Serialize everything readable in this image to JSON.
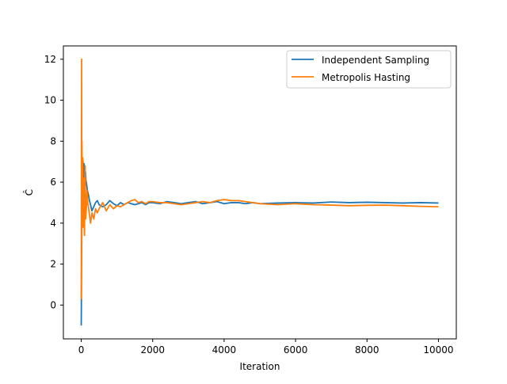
{
  "chart_data": {
    "type": "line",
    "title": "",
    "xlabel": "Iteration",
    "ylabel": "Ĉ",
    "xlim": [
      -500,
      10500
    ],
    "ylim": [
      -1.65,
      12.65
    ],
    "xticks": [
      0,
      2000,
      4000,
      6000,
      8000,
      10000
    ],
    "yticks": [
      0,
      2,
      4,
      6,
      8,
      10,
      12
    ],
    "grid": false,
    "legend_position": "top-right",
    "series": [
      {
        "name": "Independent Sampling",
        "color": "#1f77b4",
        "x": [
          0,
          5,
          10,
          15,
          20,
          30,
          40,
          50,
          60,
          70,
          80,
          90,
          100,
          110,
          120,
          130,
          150,
          170,
          200,
          230,
          260,
          300,
          350,
          400,
          450,
          500,
          600,
          700,
          800,
          900,
          1000,
          1100,
          1200,
          1300,
          1400,
          1500,
          1600,
          1700,
          1800,
          1900,
          2000,
          2200,
          2400,
          2600,
          2800,
          3000,
          3200,
          3400,
          3600,
          3800,
          4000,
          4200,
          4400,
          4600,
          4800,
          5000,
          5500,
          6000,
          6500,
          7000,
          7500,
          8000,
          8500,
          9000,
          9500,
          10000
        ],
        "y": [
          -1.0,
          0.5,
          3.2,
          6.0,
          5.0,
          6.6,
          7.1,
          7.0,
          5.5,
          6.2,
          6.9,
          6.3,
          6.8,
          6.0,
          6.5,
          6.1,
          5.9,
          5.6,
          5.4,
          5.1,
          4.9,
          4.6,
          4.8,
          5.0,
          5.1,
          4.9,
          4.8,
          4.9,
          5.1,
          4.95,
          4.85,
          5.0,
          4.9,
          5.0,
          4.95,
          4.9,
          4.95,
          5.0,
          4.9,
          5.0,
          5.0,
          4.95,
          5.05,
          5.0,
          4.95,
          5.0,
          5.05,
          4.95,
          5.0,
          5.05,
          4.95,
          5.0,
          5.0,
          4.95,
          5.0,
          4.95,
          4.98,
          5.0,
          4.98,
          5.03,
          5.0,
          5.02,
          5.0,
          4.98,
          5.0,
          4.98
        ]
      },
      {
        "name": "Metropolis Hasting",
        "color": "#ff7f0e",
        "x": [
          0,
          5,
          10,
          15,
          20,
          25,
          30,
          40,
          50,
          60,
          70,
          80,
          90,
          100,
          110,
          120,
          140,
          160,
          180,
          200,
          230,
          260,
          300,
          350,
          400,
          450,
          500,
          600,
          700,
          800,
          900,
          1000,
          1100,
          1200,
          1300,
          1400,
          1500,
          1600,
          1700,
          1800,
          1900,
          2000,
          2200,
          2400,
          2600,
          2800,
          3000,
          3200,
          3400,
          3600,
          3800,
          4000,
          4200,
          4400,
          4600,
          4800,
          5000,
          5500,
          6000,
          6500,
          7000,
          7500,
          8000,
          8500,
          9000,
          9500,
          10000
        ],
        "y": [
          0.3,
          6.5,
          12.0,
          3.0,
          8.0,
          4.5,
          6.0,
          7.2,
          3.8,
          5.0,
          6.2,
          4.0,
          3.4,
          5.5,
          6.8,
          4.2,
          4.6,
          5.6,
          5.0,
          4.8,
          4.4,
          4.0,
          4.5,
          4.2,
          4.7,
          4.5,
          4.7,
          5.0,
          4.6,
          4.9,
          4.7,
          4.85,
          4.8,
          4.9,
          5.0,
          5.1,
          5.15,
          5.0,
          5.05,
          4.95,
          5.05,
          5.05,
          5.0,
          5.0,
          4.95,
          4.9,
          4.95,
          5.0,
          5.05,
          5.0,
          5.1,
          5.15,
          5.1,
          5.1,
          5.05,
          5.0,
          4.95,
          4.9,
          4.95,
          4.9,
          4.88,
          4.85,
          4.87,
          4.88,
          4.85,
          4.82,
          4.8
        ]
      }
    ]
  }
}
